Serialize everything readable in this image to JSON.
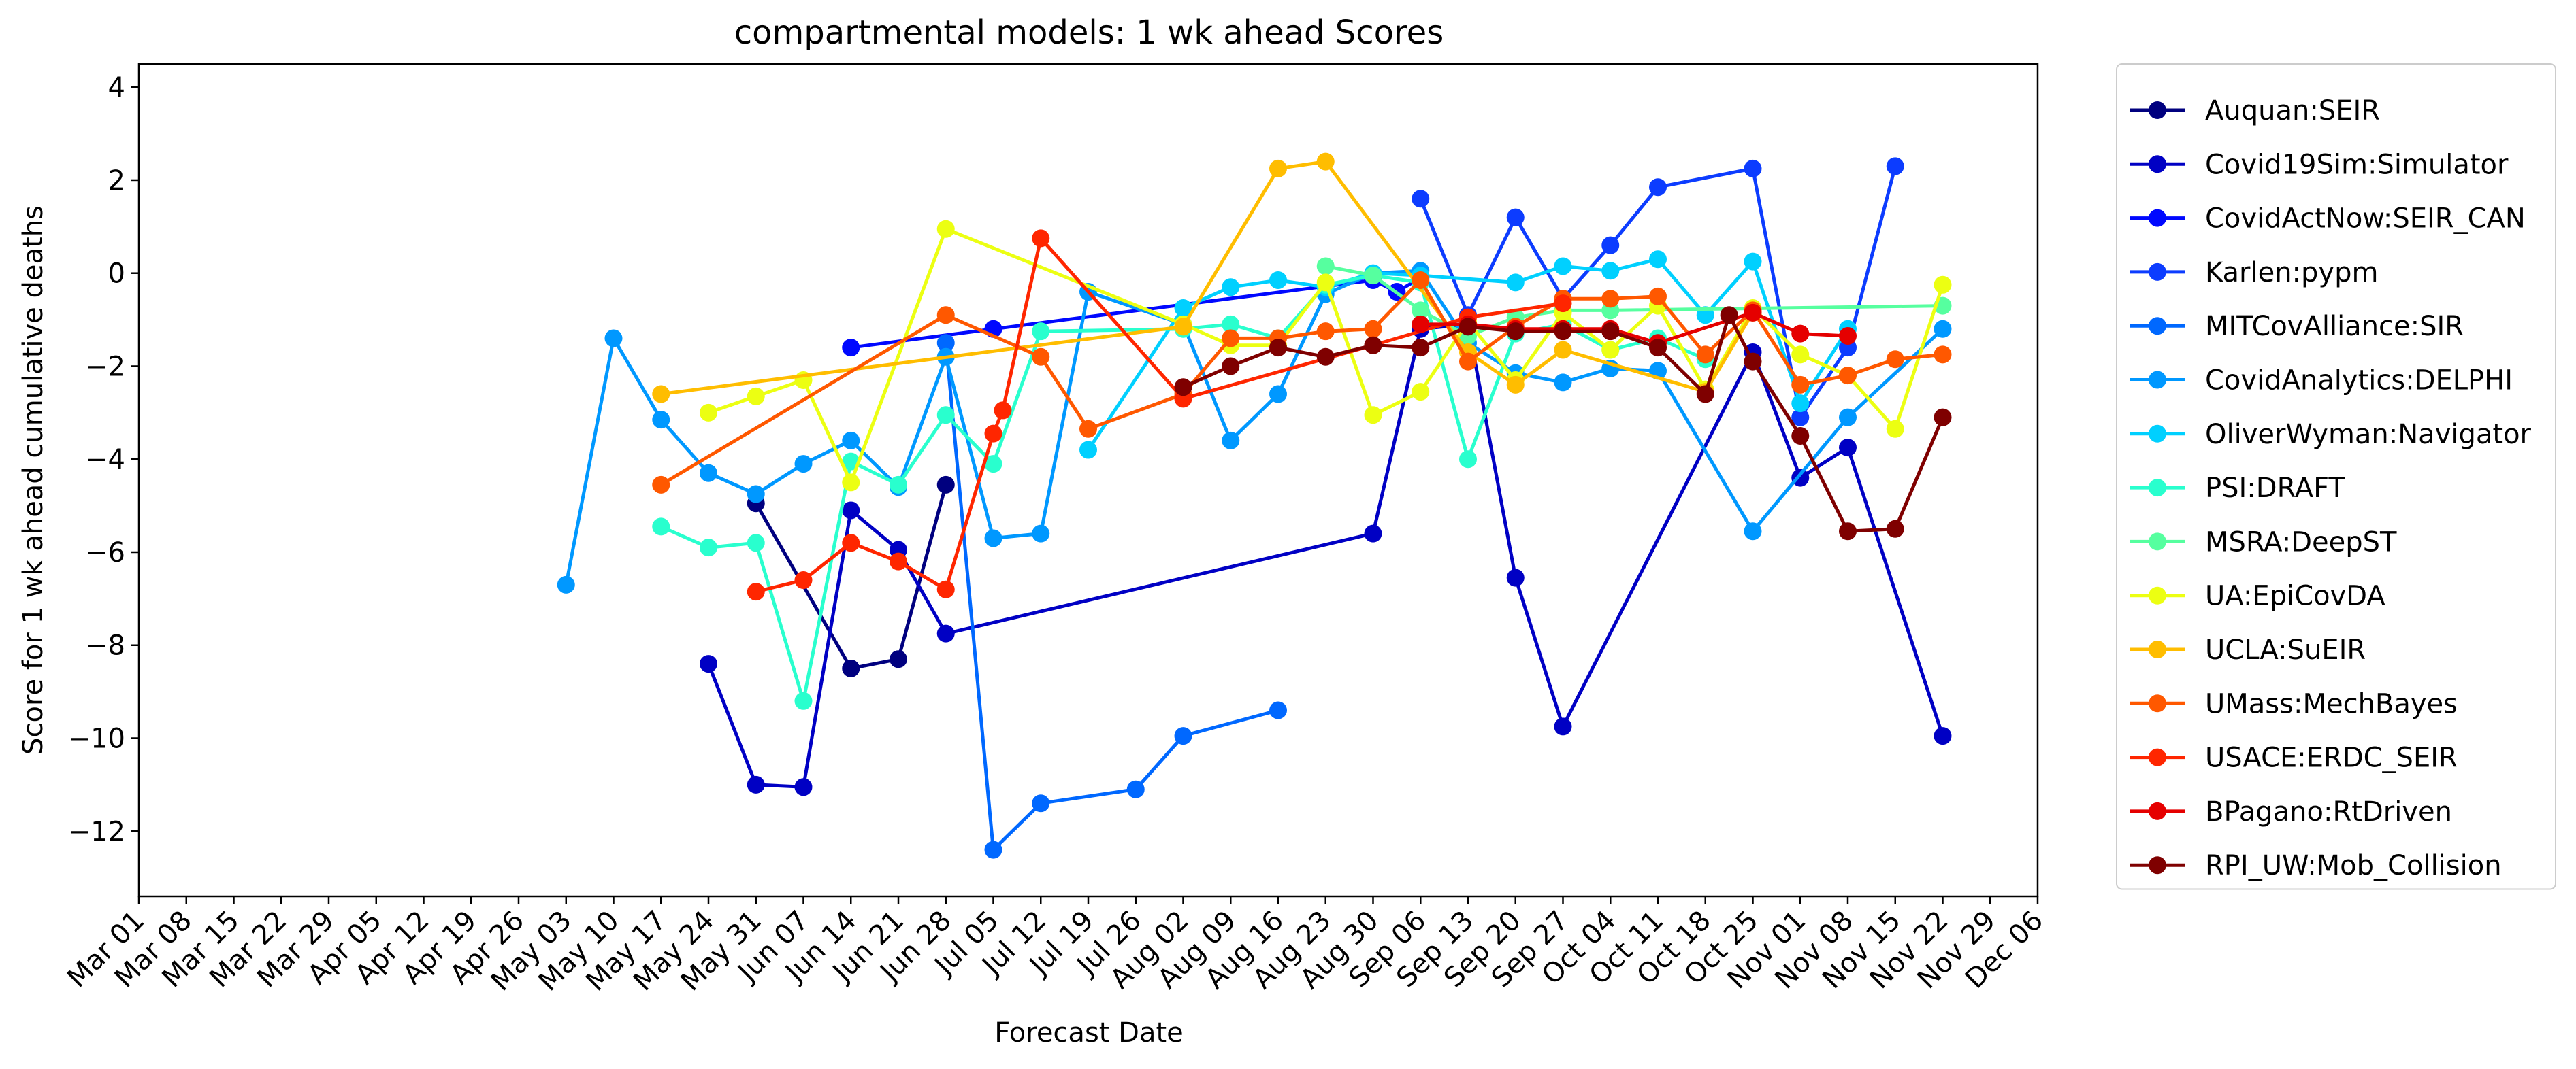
{
  "chart_data": {
    "type": "line",
    "title": "compartmental models: 1 wk ahead Scores",
    "xlabel": "Forecast Date",
    "ylabel": "Score for 1 wk ahead cumulative deaths",
    "x_ticks": [
      "Mar 01",
      "Mar 08",
      "Mar 15",
      "Mar 22",
      "Mar 29",
      "Apr 05",
      "Apr 12",
      "Apr 19",
      "Apr 26",
      "May 03",
      "May 10",
      "May 17",
      "May 24",
      "May 31",
      "Jun 07",
      "Jun 14",
      "Jun 21",
      "Jun 28",
      "Jul 05",
      "Jul 12",
      "Jul 19",
      "Jul 26",
      "Aug 02",
      "Aug 09",
      "Aug 16",
      "Aug 23",
      "Aug 30",
      "Sep 06",
      "Sep 13",
      "Sep 20",
      "Sep 27",
      "Oct 04",
      "Oct 11",
      "Oct 18",
      "Oct 25",
      "Nov 01",
      "Nov 08",
      "Nov 15",
      "Nov 22",
      "Nov 29",
      "Dec 06"
    ],
    "y_ticks": [
      -12,
      -10,
      -8,
      -6,
      -4,
      -2,
      0,
      2,
      4
    ],
    "xlim": [
      0,
      40
    ],
    "ylim": [
      -13.4,
      4.5
    ],
    "grid": false,
    "legend_placement": "outside-right",
    "series": [
      {
        "name": "Auquan:SEIR",
        "color": "#00007f",
        "points": [
          [
            13,
            -4.95
          ],
          [
            15,
            -8.5
          ],
          [
            16,
            -8.3
          ],
          [
            17,
            -4.55
          ]
        ]
      },
      {
        "name": "Covid19Sim:Simulator",
        "color": "#0000c4",
        "points": [
          [
            12,
            -8.4
          ],
          [
            13,
            -11
          ],
          [
            14,
            -11.05
          ],
          [
            15,
            -5.1
          ],
          [
            16,
            -5.95
          ],
          [
            17,
            -7.75
          ],
          [
            26,
            -5.6
          ],
          [
            27,
            -1.2
          ],
          [
            28,
            -1.1
          ],
          [
            29,
            -6.55
          ],
          [
            30,
            -9.75
          ],
          [
            34,
            -1.7
          ],
          [
            35,
            -4.4
          ],
          [
            36,
            -3.75
          ],
          [
            38,
            -9.95
          ]
        ]
      },
      {
        "name": "CovidActNow:SEIR_CAN",
        "color": "#0008ff",
        "points": [
          [
            15,
            -1.6
          ],
          [
            18,
            -1.2
          ],
          [
            26,
            -0.15
          ],
          [
            26.5,
            -0.4
          ],
          [
            27,
            -0.1
          ]
        ]
      },
      {
        "name": "Karlen:pypm",
        "color": "#0c3cff",
        "points": [
          [
            27,
            1.6
          ],
          [
            28,
            -0.9
          ],
          [
            29,
            1.2
          ],
          [
            30,
            -0.55
          ],
          [
            31,
            0.6
          ],
          [
            32,
            1.85
          ],
          [
            34,
            2.25
          ],
          [
            35,
            -3.1
          ],
          [
            36,
            -1.6
          ],
          [
            37,
            2.3
          ]
        ]
      },
      {
        "name": "MITCovAlliance:SIR",
        "color": "#0068ff",
        "points": [
          [
            17,
            -1.5
          ],
          [
            18,
            -12.4
          ],
          [
            19,
            -11.4
          ],
          [
            21,
            -11.1
          ],
          [
            22,
            -9.95
          ],
          [
            24,
            -9.4
          ]
        ]
      },
      {
        "name": "CovidAnalytics:DELPHI",
        "color": "#0098ff",
        "points": [
          [
            9,
            -6.7
          ],
          [
            10,
            -1.4
          ],
          [
            11,
            -3.15
          ],
          [
            12,
            -4.3
          ],
          [
            13,
            -4.75
          ],
          [
            14,
            -4.1
          ],
          [
            15,
            -3.6
          ],
          [
            16,
            -4.6
          ],
          [
            17,
            -1.8
          ],
          [
            18,
            -5.7
          ],
          [
            19,
            -5.6
          ],
          [
            20,
            -0.4
          ],
          [
            22,
            -1.1
          ],
          [
            23,
            -3.6
          ],
          [
            24,
            -2.6
          ],
          [
            25,
            -0.45
          ],
          [
            26,
            0
          ],
          [
            27,
            0.05
          ],
          [
            28,
            -1.5
          ],
          [
            29,
            -2.15
          ],
          [
            30,
            -2.35
          ],
          [
            31,
            -2.05
          ],
          [
            32,
            -2.1
          ],
          [
            34,
            -5.55
          ],
          [
            36,
            -3.1
          ],
          [
            38,
            -1.2
          ]
        ]
      },
      {
        "name": "OliverWyman:Navigator",
        "color": "#00d0ff",
        "points": [
          [
            20,
            -3.8
          ],
          [
            22,
            -0.75
          ],
          [
            23,
            -0.3
          ],
          [
            24,
            -0.15
          ],
          [
            25,
            -0.3
          ],
          [
            26,
            0
          ],
          [
            27,
            -0.05
          ],
          [
            29,
            -0.2
          ],
          [
            30,
            0.15
          ],
          [
            31,
            0.05
          ],
          [
            32,
            0.3
          ],
          [
            33,
            -0.9
          ],
          [
            34,
            0.25
          ],
          [
            35,
            -2.8
          ],
          [
            36,
            -1.2
          ]
        ]
      },
      {
        "name": "PSI:DRAFT",
        "color": "#29ffce",
        "points": [
          [
            11,
            -5.45
          ],
          [
            12,
            -5.9
          ],
          [
            13,
            -5.8
          ],
          [
            14,
            -9.2
          ],
          [
            15,
            -4.05
          ],
          [
            16,
            -4.55
          ],
          [
            17,
            -3.05
          ],
          [
            18,
            -4.1
          ],
          [
            19,
            -1.25
          ],
          [
            22,
            -1.2
          ],
          [
            23,
            -1.1
          ],
          [
            24,
            -1.4
          ],
          [
            25,
            -0.25
          ],
          [
            26,
            -0.05
          ],
          [
            27,
            -0.2
          ],
          [
            28,
            -4
          ],
          [
            29,
            -1.3
          ],
          [
            30,
            -1.1
          ],
          [
            31,
            -1.65
          ],
          [
            32,
            -1.4
          ],
          [
            33,
            -1.85
          ]
        ]
      },
      {
        "name": "MSRA:DeepST",
        "color": "#56ff9f",
        "points": [
          [
            25,
            0.15
          ],
          [
            26,
            -0.05
          ],
          [
            27,
            -0.8
          ],
          [
            28,
            -1.35
          ],
          [
            29,
            -0.95
          ],
          [
            30,
            -0.8
          ],
          [
            31,
            -0.8
          ],
          [
            38,
            -0.7
          ]
        ]
      },
      {
        "name": "UA:EpiCovDA",
        "color": "#ecff12",
        "points": [
          [
            12,
            -3
          ],
          [
            13,
            -2.65
          ],
          [
            14,
            -2.3
          ],
          [
            15,
            -4.5
          ],
          [
            17,
            0.95
          ],
          [
            22,
            -1.1
          ],
          [
            23,
            -1.55
          ],
          [
            24,
            -1.55
          ],
          [
            25,
            -0.2
          ],
          [
            26,
            -3.05
          ],
          [
            27,
            -2.55
          ],
          [
            28,
            -1.05
          ],
          [
            29,
            -2.3
          ],
          [
            30,
            -0.85
          ],
          [
            31,
            -1.65
          ],
          [
            32,
            -0.7
          ],
          [
            33,
            -2.5
          ],
          [
            34,
            -0.75
          ],
          [
            35,
            -1.75
          ],
          [
            36,
            -2.2
          ],
          [
            37,
            -3.35
          ],
          [
            38,
            -0.25
          ]
        ]
      },
      {
        "name": "UCLA:SuEIR",
        "color": "#ffbd00",
        "points": [
          [
            11,
            -2.6
          ],
          [
            22,
            -1.15
          ],
          [
            24,
            2.25
          ],
          [
            25,
            2.4
          ],
          [
            28,
            -1.7
          ],
          [
            29,
            -2.4
          ],
          [
            30,
            -1.65
          ],
          [
            33,
            -2.55
          ],
          [
            34,
            -0.85
          ]
        ]
      },
      {
        "name": "UMass:MechBayes",
        "color": "#ff5800",
        "points": [
          [
            11,
            -4.55
          ],
          [
            17,
            -0.9
          ],
          [
            19,
            -1.8
          ],
          [
            20,
            -3.35
          ],
          [
            22,
            -2.6
          ],
          [
            23,
            -1.4
          ],
          [
            24,
            -1.4
          ],
          [
            25,
            -1.25
          ],
          [
            26,
            -1.2
          ],
          [
            27,
            -0.15
          ],
          [
            28,
            -1.9
          ],
          [
            29,
            -1.15
          ],
          [
            30,
            -0.55
          ],
          [
            31,
            -0.55
          ],
          [
            32,
            -0.5
          ],
          [
            33,
            -1.75
          ],
          [
            34,
            -0.8
          ],
          [
            35,
            -2.4
          ],
          [
            36,
            -2.2
          ],
          [
            37,
            -1.85
          ],
          [
            38,
            -1.75
          ]
        ]
      },
      {
        "name": "USACE:ERDC_SEIR",
        "color": "#ff2600",
        "points": [
          [
            13,
            -6.85
          ],
          [
            14,
            -6.6
          ],
          [
            15,
            -5.8
          ],
          [
            16,
            -6.2
          ],
          [
            17,
            -6.8
          ],
          [
            18,
            -3.45
          ],
          [
            18.2,
            -2.95
          ],
          [
            19,
            0.75
          ],
          [
            22,
            -2.7
          ],
          [
            26,
            -1.55
          ],
          [
            28,
            -0.95
          ],
          [
            30,
            -0.65
          ]
        ]
      },
      {
        "name": "BPagano:RtDriven",
        "color": "#e50000",
        "points": [
          [
            27,
            -1.1
          ],
          [
            28,
            -1.1
          ],
          [
            29,
            -1.2
          ],
          [
            30,
            -1.2
          ],
          [
            31,
            -1.2
          ],
          [
            32,
            -1.5
          ],
          [
            34,
            -0.85
          ],
          [
            35,
            -1.3
          ],
          [
            36,
            -1.35
          ]
        ]
      },
      {
        "name": "RPI_UW:Mob_Collision",
        "color": "#7f0000",
        "points": [
          [
            22,
            -2.45
          ],
          [
            23,
            -2
          ],
          [
            24,
            -1.6
          ],
          [
            25,
            -1.8
          ],
          [
            26,
            -1.55
          ],
          [
            27,
            -1.6
          ],
          [
            28,
            -1.15
          ],
          [
            29,
            -1.25
          ],
          [
            30,
            -1.25
          ],
          [
            31,
            -1.25
          ],
          [
            32,
            -1.6
          ],
          [
            33,
            -2.6
          ],
          [
            33.5,
            -0.9
          ],
          [
            34,
            -1.9
          ],
          [
            35,
            -3.5
          ],
          [
            36,
            -5.55
          ],
          [
            37,
            -5.5
          ],
          [
            38,
            -3.1
          ]
        ]
      }
    ]
  }
}
